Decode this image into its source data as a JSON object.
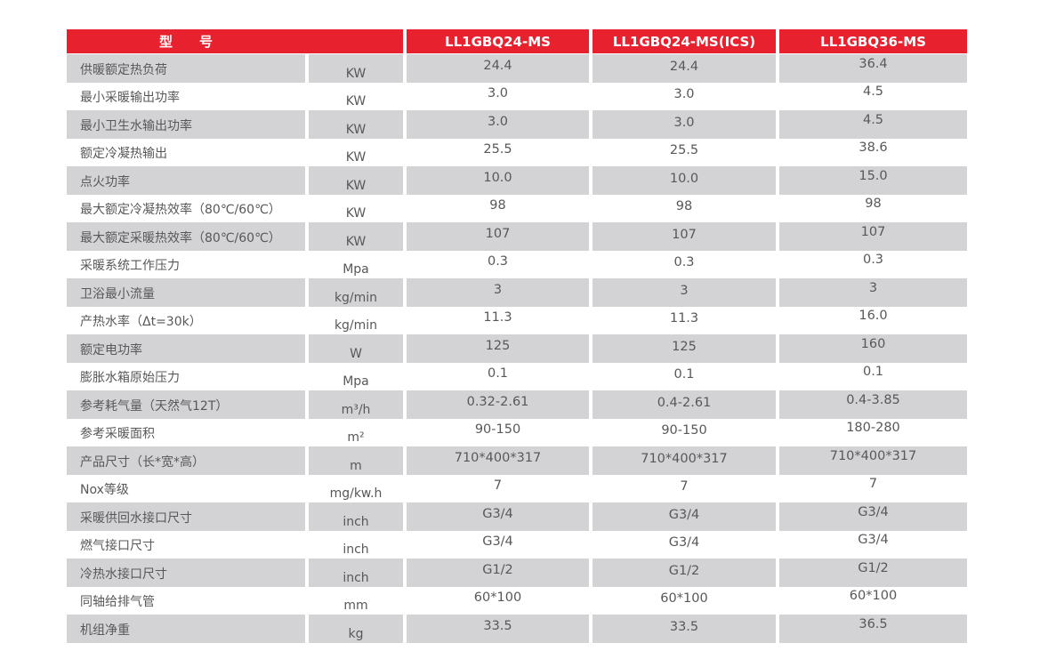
{
  "colors": {
    "header_bg": "#e8212e",
    "row_alt_bg": "#d3d3d5",
    "text_color": "#58585a",
    "header_text": "#ffffff"
  },
  "table": {
    "header": {
      "model_label": "型　　号",
      "models": [
        "LL1GBQ24-MS",
        "LL1GBQ24-MS(ICS)",
        "LL1GBQ36-MS"
      ]
    },
    "rows": [
      {
        "label": "供暖额定热负荷",
        "unit": "KW",
        "values": [
          "24.4",
          "24.4",
          "36.4"
        ]
      },
      {
        "label": "最小采暖输出功率",
        "unit": "KW",
        "values": [
          "3.0",
          "3.0",
          "4.5"
        ]
      },
      {
        "label": "最小卫生水输出功率",
        "unit": "KW",
        "values": [
          "3.0",
          "3.0",
          "4.5"
        ]
      },
      {
        "label": "额定冷凝热输出",
        "unit": "KW",
        "values": [
          "25.5",
          "25.5",
          "38.6"
        ]
      },
      {
        "label": "点火功率",
        "unit": "KW",
        "values": [
          "10.0",
          "10.0",
          "15.0"
        ]
      },
      {
        "label": "最大额定冷凝热效率（80℃/60℃）",
        "unit": "KW",
        "values": [
          "98",
          "98",
          "98"
        ]
      },
      {
        "label": "最大额定采暖热效率（80℃/60℃）",
        "unit": "KW",
        "values": [
          "107",
          "107",
          "107"
        ]
      },
      {
        "label": "采暖系统工作压力",
        "unit": "Mpa",
        "values": [
          "0.3",
          "0.3",
          "0.3"
        ]
      },
      {
        "label": "卫浴最小流量",
        "unit": "kg/min",
        "values": [
          "3",
          "3",
          "3"
        ]
      },
      {
        "label": "产热水率（Δt=30k）",
        "unit": "kg/min",
        "values": [
          "11.3",
          "11.3",
          "16.0"
        ]
      },
      {
        "label": "额定电功率",
        "unit": "W",
        "values": [
          "125",
          "125",
          "160"
        ]
      },
      {
        "label": "膨胀水箱原始压力",
        "unit": "Mpa",
        "values": [
          "0.1",
          "0.1",
          "0.1"
        ]
      },
      {
        "label": "参考耗气量（天然气12T）",
        "unit": "m³/h",
        "values": [
          "0.32-2.61",
          "0.4-2.61",
          "0.4-3.85"
        ]
      },
      {
        "label": "参考采暖面积",
        "unit": "m²",
        "values": [
          "90-150",
          "90-150",
          "180-280"
        ]
      },
      {
        "label": "产品尺寸（长*宽*高）",
        "unit": "m",
        "values": [
          "710*400*317",
          "710*400*317",
          "710*400*317"
        ]
      },
      {
        "label": "Nox等级",
        "unit": "mg/kw.h",
        "values": [
          "7",
          "7",
          "7"
        ]
      },
      {
        "label": "采暖供回水接口尺寸",
        "unit": "inch",
        "values": [
          "G3/4",
          "G3/4",
          "G3/4"
        ]
      },
      {
        "label": "燃气接口尺寸",
        "unit": "inch",
        "values": [
          "G3/4",
          "G3/4",
          "G3/4"
        ]
      },
      {
        "label": "冷热水接口尺寸",
        "unit": "inch",
        "values": [
          "G1/2",
          "G1/2",
          "G1/2"
        ]
      },
      {
        "label": "同轴给排气管",
        "unit": "mm",
        "values": [
          "60*100",
          "60*100",
          "60*100"
        ]
      },
      {
        "label": "机组净重",
        "unit": "kg",
        "values": [
          "33.5",
          "33.5",
          "36.5"
        ]
      }
    ]
  }
}
